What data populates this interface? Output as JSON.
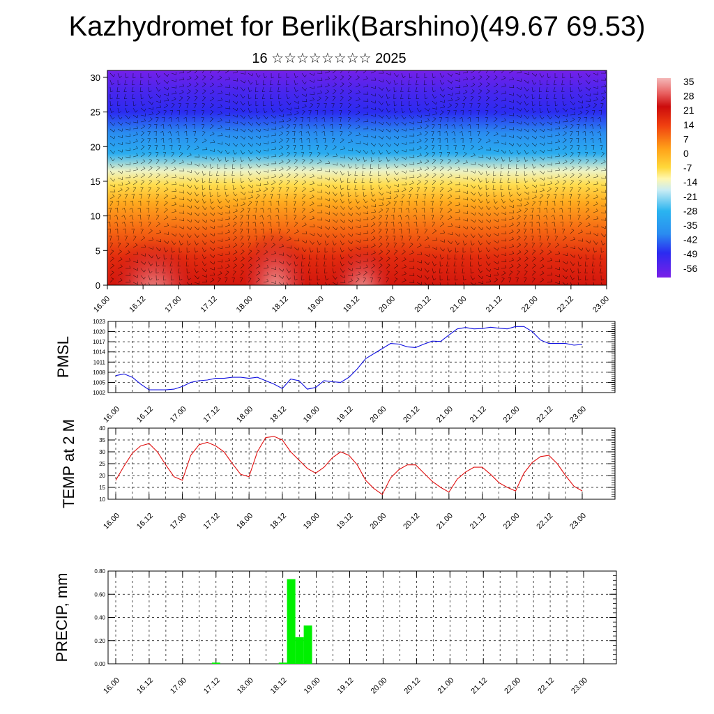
{
  "header": {
    "title": "Kazhydromet for Berlik(Barshino)(49.67 69.53)",
    "subtitle": "16 ☆☆☆☆☆☆☆☆ 2025"
  },
  "time_labels": [
    "16.00",
    "16.12",
    "17.00",
    "17.12",
    "18.00",
    "18.12",
    "19.00",
    "19.12",
    "20.00",
    "20.12",
    "21.00",
    "21.12",
    "22.00",
    "22.12",
    "23.00"
  ],
  "chart_data": [
    {
      "type": "heatmap",
      "name": "temperature-wind-cross-section",
      "x_ticks": [
        "16.00",
        "16.12",
        "17.00",
        "17.12",
        "18.00",
        "18.12",
        "19.00",
        "19.12",
        "20.00",
        "20.12",
        "21.00",
        "21.12",
        "22.00",
        "22.12",
        "23.00"
      ],
      "y_ticks": [
        "0",
        "5",
        "10",
        "15",
        "20",
        "25",
        "30"
      ],
      "ylim": [
        0,
        31
      ],
      "colorbar": {
        "labels": [
          "35",
          "28",
          "21",
          "14",
          "7",
          "0",
          "-7",
          "-14",
          "-21",
          "-28",
          "-35",
          "-42",
          "-49",
          "-56"
        ],
        "range": [
          -63,
          42
        ],
        "stops": [
          {
            "v": -63,
            "color": "#7a1fe8"
          },
          {
            "v": -50,
            "color": "#2b2bf0"
          },
          {
            "v": -40,
            "color": "#2a8cf0"
          },
          {
            "v": -28,
            "color": "#2ab4f0"
          },
          {
            "v": -17,
            "color": "#c8ecf4"
          },
          {
            "v": -11,
            "color": "#fff7b0"
          },
          {
            "v": -5,
            "color": "#ffd83a"
          },
          {
            "v": 5,
            "color": "#ffa018"
          },
          {
            "v": 17,
            "color": "#f04010"
          },
          {
            "v": 27,
            "color": "#cc0c0c"
          },
          {
            "v": 34,
            "color": "#e86060"
          },
          {
            "v": 42,
            "color": "#f4b8b8"
          }
        ]
      },
      "temperature_profile": [
        {
          "level": 0,
          "t": 25
        },
        {
          "level": 4,
          "t": 21
        },
        {
          "level": 8,
          "t": 12
        },
        {
          "level": 12,
          "t": 3
        },
        {
          "level": 14.5,
          "t": -6
        },
        {
          "level": 16.5,
          "t": -13
        },
        {
          "level": 19,
          "t": -30
        },
        {
          "level": 22,
          "t": -40
        },
        {
          "level": 25,
          "t": -50
        },
        {
          "level": 28,
          "t": -55
        },
        {
          "level": 31,
          "t": -62
        }
      ]
    },
    {
      "type": "line",
      "name": "PMSL",
      "ylabel": "PMSL",
      "y_ticks": [
        "1002",
        "1005",
        "1008",
        "1011",
        "1014",
        "1017",
        "1020",
        "1023"
      ],
      "ylim": [
        1002,
        1023
      ],
      "line_color": "#1010e0",
      "x": [
        0,
        3,
        6,
        9,
        12,
        15,
        18,
        21,
        24,
        27,
        30,
        33,
        36,
        39,
        42,
        45,
        48,
        51,
        54,
        57,
        60,
        63,
        66,
        69,
        72,
        75,
        78,
        81,
        84,
        87,
        90,
        93,
        96,
        99,
        102,
        105,
        108,
        111,
        114,
        117,
        120,
        123,
        126,
        129,
        132,
        135,
        138,
        141,
        144,
        147,
        150,
        153,
        156,
        159,
        162,
        165,
        168
      ],
      "values": [
        1007,
        1007.5,
        1006.5,
        1004.5,
        1002.8,
        1002.8,
        1002.8,
        1003,
        1003.8,
        1005,
        1005.5,
        1005.7,
        1006.2,
        1006.2,
        1006.5,
        1006.5,
        1006.2,
        1006.5,
        1005.5,
        1004.5,
        1003.2,
        1006,
        1005.5,
        1003,
        1003.5,
        1005.5,
        1005.2,
        1005,
        1006.5,
        1009,
        1012,
        1013.5,
        1015,
        1016.5,
        1016.3,
        1015.5,
        1015.3,
        1016.3,
        1017.2,
        1017.1,
        1019,
        1020.8,
        1021.2,
        1020.8,
        1020.9,
        1021.3,
        1021,
        1020.8,
        1021.5,
        1021.5,
        1020,
        1017.5,
        1016.5,
        1016.5,
        1016.5,
        1016,
        1016.2
      ]
    },
    {
      "type": "line",
      "name": "TEMP at 2 M",
      "ylabel": "TEMP at 2 M",
      "y_ticks": [
        "10",
        "15",
        "20",
        "25",
        "30",
        "35",
        "40"
      ],
      "ylim": [
        10,
        40
      ],
      "line_color": "#e01010",
      "x": [
        0,
        3,
        6,
        9,
        12,
        15,
        18,
        21,
        24,
        27,
        30,
        33,
        36,
        39,
        42,
        45,
        48,
        51,
        54,
        57,
        60,
        63,
        66,
        69,
        72,
        75,
        78,
        81,
        84,
        87,
        90,
        93,
        96,
        99,
        102,
        105,
        108,
        111,
        114,
        117,
        120,
        123,
        126,
        129,
        132,
        135,
        138,
        141,
        144,
        147,
        150,
        153,
        156,
        159,
        162,
        165,
        168
      ],
      "values": [
        18,
        24,
        29.5,
        32.5,
        33.5,
        30,
        24.5,
        19.5,
        18,
        28.5,
        33,
        34,
        32.5,
        30,
        25,
        20.5,
        19.5,
        30,
        36,
        36.5,
        35,
        30,
        26.5,
        23,
        21,
        23.5,
        27.5,
        30,
        28.5,
        24.5,
        18,
        14.5,
        12,
        19,
        22.5,
        24.5,
        24.5,
        21,
        17.5,
        15,
        13,
        18.5,
        21.5,
        23.5,
        23.5,
        20.5,
        17,
        15,
        13.5,
        21,
        25.5,
        28,
        28.5,
        25,
        20,
        15.5,
        13.5
      ]
    },
    {
      "type": "bar",
      "name": "PRECIP, mm",
      "ylabel": "PRECIP, mm",
      "y_ticks": [
        "0.00",
        "0.20",
        "0.40",
        "0.60",
        "0.80"
      ],
      "ylim": [
        0,
        0.8
      ],
      "bar_color": "#00f000",
      "x": [
        36,
        60,
        63,
        66,
        69
      ],
      "values": [
        0.01,
        0.01,
        0.73,
        0.23,
        0.33
      ]
    }
  ]
}
